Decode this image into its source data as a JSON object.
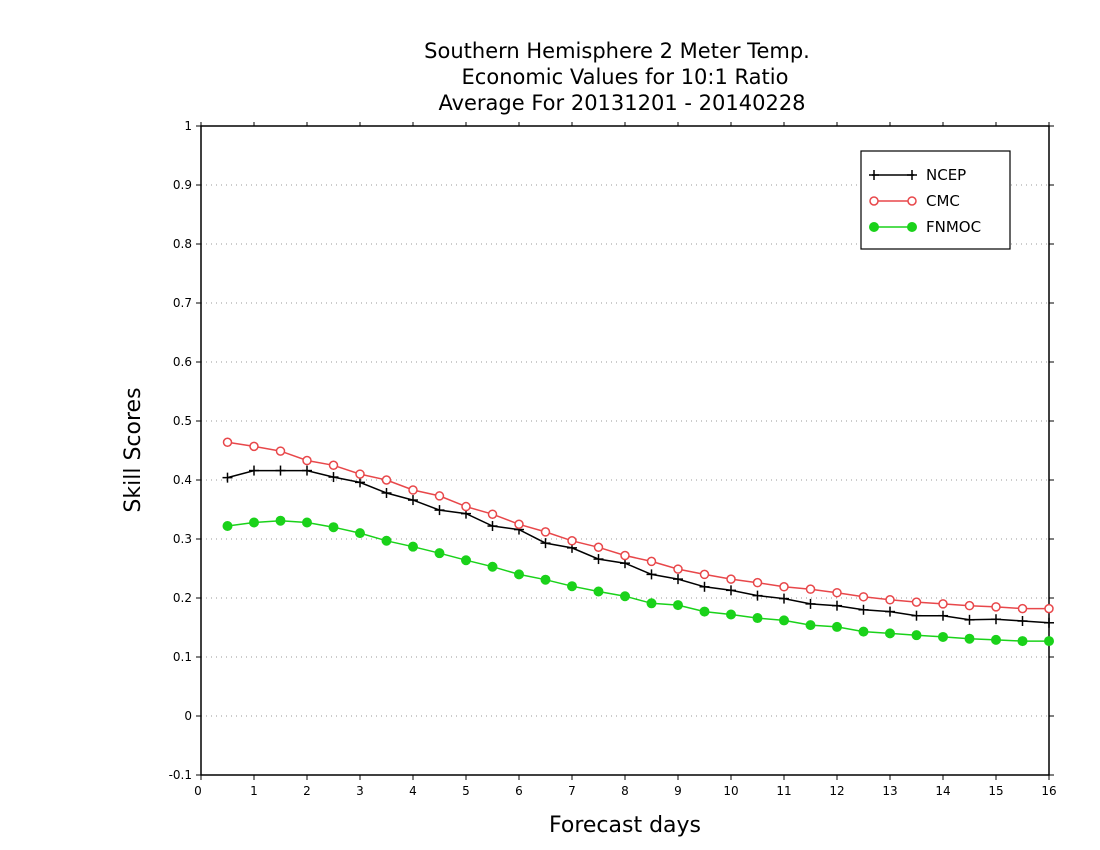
{
  "chart_data": {
    "type": "line",
    "title": [
      "Southern Hemisphere 2 Meter Temp.",
      "Economic Values for 10:1 Ratio",
      "Average For 20131201 - 20140228"
    ],
    "xlabel": "Forecast days",
    "ylabel": "Skill Scores",
    "xlim": [
      0,
      16
    ],
    "ylim": [
      -0.1,
      1
    ],
    "xticks": [
      0,
      1,
      2,
      3,
      4,
      5,
      6,
      7,
      8,
      9,
      10,
      11,
      12,
      13,
      14,
      15,
      16
    ],
    "xtick_labels": [
      "0",
      "1",
      "2",
      "3",
      "4",
      "5",
      "6",
      "7",
      "8",
      "9",
      "10",
      "11",
      "12",
      "13",
      "14",
      "15",
      "16"
    ],
    "yticks": [
      -0.1,
      0,
      0.1,
      0.2,
      0.3,
      0.4,
      0.5,
      0.6,
      0.7,
      0.8,
      0.9,
      1
    ],
    "ytick_labels": [
      "-0.1",
      "0",
      "0.1",
      "0.2",
      "0.3",
      "0.4",
      "0.5",
      "0.6",
      "0.7",
      "0.8",
      "0.9",
      "1"
    ],
    "grid": "horizontal dotted",
    "legend_position": "top-right",
    "x": [
      0.5,
      1,
      1.5,
      2,
      2.5,
      3,
      3.5,
      4,
      4.5,
      5,
      5.5,
      6,
      6.5,
      7,
      7.5,
      8,
      8.5,
      9,
      9.5,
      10,
      10.5,
      11,
      11.5,
      12,
      12.5,
      13,
      13.5,
      14,
      14.5,
      15,
      15.5,
      16
    ],
    "series": [
      {
        "name": "NCEP",
        "color": "#000000",
        "marker": "plus",
        "values": [
          0.404,
          0.416,
          0.416,
          0.416,
          0.405,
          0.396,
          0.378,
          0.366,
          0.349,
          0.343,
          0.322,
          0.316,
          0.293,
          0.285,
          0.266,
          0.259,
          0.24,
          0.232,
          0.219,
          0.213,
          0.204,
          0.199,
          0.19,
          0.187,
          0.18,
          0.177,
          0.17,
          0.17,
          0.163,
          0.164,
          0.161,
          0.158
        ]
      },
      {
        "name": "CMC",
        "color": "#e8474a",
        "marker": "open-circle",
        "values": [
          0.464,
          0.457,
          0.449,
          0.433,
          0.425,
          0.41,
          0.4,
          0.383,
          0.373,
          0.355,
          0.342,
          0.325,
          0.312,
          0.297,
          0.286,
          0.272,
          0.262,
          0.249,
          0.24,
          0.232,
          0.226,
          0.219,
          0.215,
          0.209,
          0.202,
          0.197,
          0.193,
          0.19,
          0.187,
          0.185,
          0.182,
          0.182
        ]
      },
      {
        "name": "FNMOC",
        "color": "#1ad21a",
        "marker": "filled-circle",
        "values": [
          0.322,
          0.328,
          0.331,
          0.328,
          0.32,
          0.31,
          0.297,
          0.287,
          0.276,
          0.264,
          0.253,
          0.24,
          0.231,
          0.22,
          0.211,
          0.203,
          0.191,
          0.188,
          0.177,
          0.172,
          0.166,
          0.162,
          0.154,
          0.151,
          0.143,
          0.14,
          0.137,
          0.134,
          0.131,
          0.129,
          0.127,
          0.127
        ]
      }
    ]
  }
}
